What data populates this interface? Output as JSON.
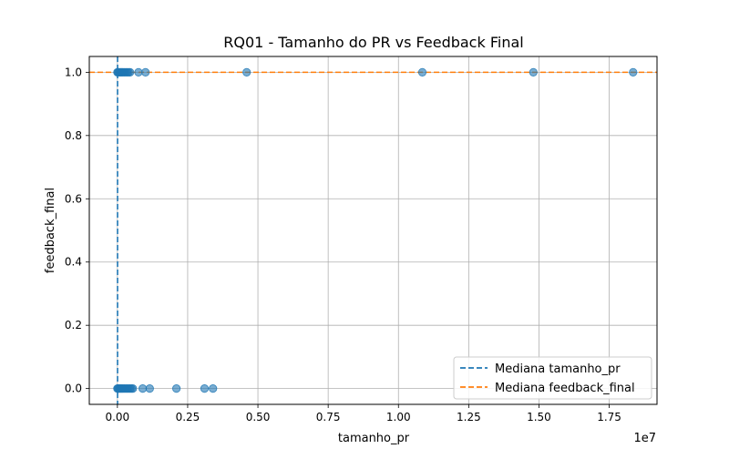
{
  "chart_data": {
    "type": "scatter",
    "title": "RQ01 - Tamanho do PR vs Feedback Final",
    "xlabel": "tamanho_pr",
    "ylabel": "feedback_final",
    "x_offset_label": "1e7",
    "xlim": [
      -1000000,
      19200000
    ],
    "ylim": [
      -0.05,
      1.05
    ],
    "x_ticks": [
      0,
      2500000,
      5000000,
      7500000,
      10000000,
      12500000,
      15000000,
      17500000
    ],
    "x_tick_labels": [
      "0.00",
      "0.25",
      "0.50",
      "0.75",
      "1.00",
      "1.25",
      "1.50",
      "1.75"
    ],
    "y_ticks": [
      0,
      0.2,
      0.4,
      0.6,
      0.8,
      1.0
    ],
    "y_tick_labels": [
      "0.0",
      "0.2",
      "0.4",
      "0.6",
      "0.8",
      "1.0"
    ],
    "grid": true,
    "legend_position": "bottom-right",
    "point_color": "#1f77b4",
    "median_x": 5000,
    "median_y": 1.0,
    "median_x_color": "#1f77b4",
    "median_y_color": "#ff7f0e",
    "legend": [
      "Mediana tamanho_pr",
      "Mediana feedback_final"
    ],
    "points": [
      {
        "x": 0,
        "y": 1
      },
      {
        "x": 20000,
        "y": 1
      },
      {
        "x": 50000,
        "y": 1
      },
      {
        "x": 80000,
        "y": 1
      },
      {
        "x": 120000,
        "y": 1
      },
      {
        "x": 160000,
        "y": 1
      },
      {
        "x": 200000,
        "y": 1
      },
      {
        "x": 250000,
        "y": 1
      },
      {
        "x": 300000,
        "y": 1
      },
      {
        "x": 350000,
        "y": 1
      },
      {
        "x": 400000,
        "y": 1
      },
      {
        "x": 450000,
        "y": 1
      },
      {
        "x": 750000,
        "y": 1
      },
      {
        "x": 1000000,
        "y": 1
      },
      {
        "x": 4600000,
        "y": 1
      },
      {
        "x": 10850000,
        "y": 1
      },
      {
        "x": 14800000,
        "y": 1
      },
      {
        "x": 18350000,
        "y": 1
      },
      {
        "x": 0,
        "y": 0
      },
      {
        "x": 20000,
        "y": 0
      },
      {
        "x": 50000,
        "y": 0
      },
      {
        "x": 80000,
        "y": 0
      },
      {
        "x": 120000,
        "y": 0
      },
      {
        "x": 160000,
        "y": 0
      },
      {
        "x": 200000,
        "y": 0
      },
      {
        "x": 250000,
        "y": 0
      },
      {
        "x": 300000,
        "y": 0
      },
      {
        "x": 350000,
        "y": 0
      },
      {
        "x": 400000,
        "y": 0
      },
      {
        "x": 450000,
        "y": 0
      },
      {
        "x": 500000,
        "y": 0
      },
      {
        "x": 550000,
        "y": 0
      },
      {
        "x": 900000,
        "y": 0
      },
      {
        "x": 1150000,
        "y": 0
      },
      {
        "x": 2100000,
        "y": 0
      },
      {
        "x": 3100000,
        "y": 0
      },
      {
        "x": 3400000,
        "y": 0
      }
    ]
  }
}
